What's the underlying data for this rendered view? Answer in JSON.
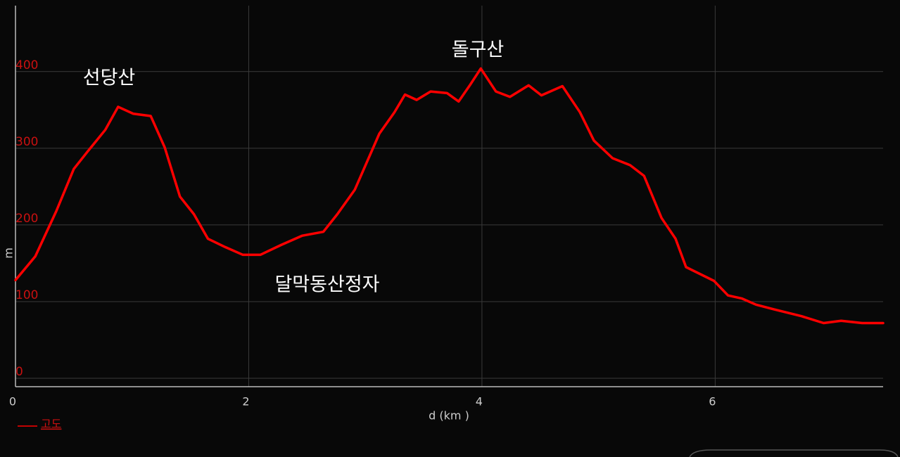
{
  "chart_data": {
    "type": "line",
    "xlabel": "d (km )",
    "ylabel": "m",
    "annotations": [
      "선당산",
      "돌구산",
      "달막동산정자"
    ],
    "xlim": [
      0,
      7.44
    ],
    "xticks": [
      0,
      2,
      4,
      6
    ],
    "ylim": [
      -11,
      486
    ],
    "yticks": [
      0,
      100,
      200,
      300,
      400
    ],
    "grid": true,
    "legend": "bottom-left",
    "series": [
      {
        "name": "고도",
        "color": "#ff0000",
        "x": [
          0,
          0.17,
          0.35,
          0.5,
          0.62,
          0.77,
          0.88,
          1.01,
          1.16,
          1.28,
          1.41,
          1.53,
          1.65,
          1.8,
          1.95,
          2.1,
          2.28,
          2.46,
          2.64,
          2.76,
          2.91,
          3.12,
          3.25,
          3.34,
          3.44,
          3.56,
          3.7,
          3.8,
          3.9,
          3.99,
          4.12,
          4.24,
          4.4,
          4.51,
          4.69,
          4.84,
          4.96,
          5.12,
          5.27,
          5.39,
          5.54,
          5.66,
          5.75,
          5.99,
          6.11,
          6.23,
          6.35,
          6.5,
          6.74,
          6.93,
          7.08,
          7.26,
          7.44
        ],
        "values": [
          128,
          159,
          218,
          273,
          296,
          324,
          354,
          345,
          342,
          301,
          237,
          214,
          182,
          171,
          161,
          161,
          174,
          186,
          191,
          214,
          246,
          319,
          347,
          370,
          363,
          374,
          372,
          361,
          383,
          404,
          374,
          367,
          382,
          369,
          381,
          347,
          310,
          287,
          278,
          264,
          209,
          182,
          145,
          127,
          108,
          104,
          96,
          90,
          81,
          72,
          75,
          72,
          72
        ]
      }
    ]
  }
}
